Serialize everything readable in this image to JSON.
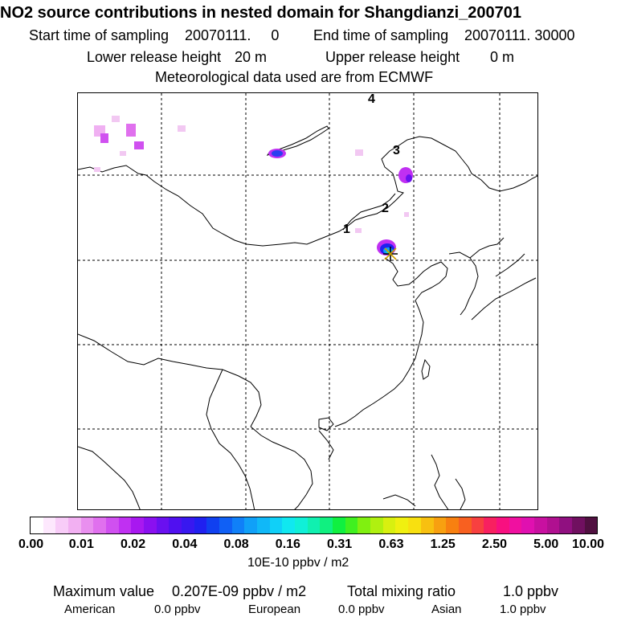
{
  "header": {
    "title": "NO2 source contributions in nested domain for Shangdianzi_200701",
    "start_label": "Start time of sampling",
    "start_value": "20070111.     0",
    "end_label": "End time of sampling",
    "end_value": "20070111. 30000",
    "lower_label": "Lower release height",
    "lower_value": "20 m",
    "upper_label": "Upper release height",
    "upper_value": "0 m",
    "met_line": "Meteorological data used are from ECMWF"
  },
  "map": {
    "trajectory_labels": [
      "1",
      "2",
      "3",
      "4"
    ],
    "receptor_marker": "star-marker"
  },
  "colorbar": {
    "unit": "10E-10 ppbv / m2",
    "ticks": [
      "0.00",
      "0.01",
      "0.02",
      "0.04",
      "0.08",
      "0.16",
      "0.31",
      "0.63",
      "1.25",
      "2.50",
      "5.00",
      "10.00"
    ],
    "colors": [
      "#ffffff",
      "#fde8fd",
      "#f8ccf8",
      "#f2b0f2",
      "#e98fef",
      "#e070ee",
      "#d050f0",
      "#c030f2",
      "#a818f0",
      "#8a10f0",
      "#6a10f0",
      "#5010f0",
      "#3818f0",
      "#2020f0",
      "#1040f0",
      "#1060f5",
      "#1080f8",
      "#10a0f8",
      "#10b8f8",
      "#10d0f8",
      "#10e8f0",
      "#10f0d8",
      "#10f0b0",
      "#10f080",
      "#10f040",
      "#40f020",
      "#80f010",
      "#b0f010",
      "#d8f010",
      "#f0f010",
      "#f8e010",
      "#f8c010",
      "#f8a010",
      "#f88010",
      "#f86020",
      "#f84040",
      "#f82060",
      "#f81080",
      "#f010a0",
      "#e010b0",
      "#c810a0",
      "#b01090",
      "#901080",
      "#701060",
      "#501040"
    ]
  },
  "footer": {
    "max_label": "Maximum value",
    "max_value": "0.207E-09 ppbv / m2",
    "total_label": "Total mixing ratio",
    "total_value": "1.0 ppbv",
    "american_label": "American",
    "american_value": "0.0 ppbv",
    "european_label": "European",
    "european_value": "0.0 ppbv",
    "asian_label": "Asian",
    "asian_value": "1.0 ppbv"
  }
}
